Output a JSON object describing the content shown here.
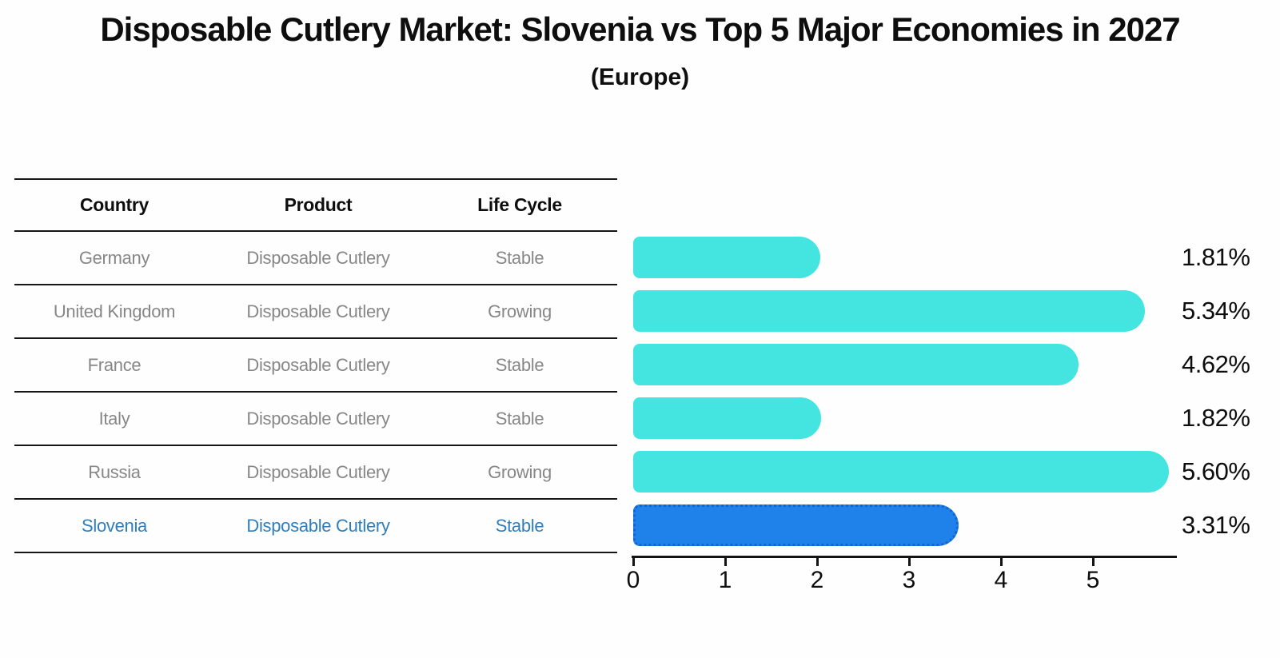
{
  "title": "Disposable Cutlery Market: Slovenia vs Top 5 Major Economies in 2027",
  "subtitle": "(Europe)",
  "table": {
    "columns": [
      "Country",
      "Product",
      "Life Cycle"
    ],
    "rows": [
      {
        "country": "Germany",
        "product": "Disposable Cutlery",
        "life_cycle": "Stable",
        "highlight": false
      },
      {
        "country": "United Kingdom",
        "product": "Disposable Cutlery",
        "life_cycle": "Growing",
        "highlight": false
      },
      {
        "country": "France",
        "product": "Disposable Cutlery",
        "life_cycle": "Stable",
        "highlight": false
      },
      {
        "country": "Italy",
        "product": "Disposable Cutlery",
        "life_cycle": "Stable",
        "highlight": false
      },
      {
        "country": "Russia",
        "product": "Disposable Cutlery",
        "life_cycle": "Growing",
        "highlight": false
      },
      {
        "country": "Slovenia",
        "product": "Disposable Cutlery",
        "life_cycle": "Stable",
        "highlight": true
      }
    ]
  },
  "chart_data": {
    "type": "bar",
    "orientation": "horizontal",
    "title": "Disposable Cutlery Market: Slovenia vs Top 5 Major Economies in 2027 (Europe)",
    "categories": [
      "Germany",
      "United Kingdom",
      "France",
      "Italy",
      "Russia",
      "Slovenia"
    ],
    "values": [
      1.81,
      5.34,
      4.62,
      1.82,
      5.6,
      3.31
    ],
    "value_labels": [
      "1.81%",
      "5.34%",
      "4.62%",
      "1.82%",
      "5.60%",
      "3.31%"
    ],
    "x_ticks": [
      "0",
      "1",
      "2",
      "3",
      "4",
      "5"
    ],
    "xlim": [
      0,
      5.93
    ],
    "grid": false,
    "legend": "none",
    "value_label_position": "right",
    "bar_color": "#44e5e0",
    "highlight_index": 5,
    "highlight_bar_color": "#1e82ea",
    "highlight_border_color": "#1563d2",
    "highlight_text_color": "#2e7ebf"
  },
  "colors": {
    "background": "#fefefe",
    "text": "#0e0e0e",
    "table_body_text": "#878787",
    "table_border": "#161616",
    "axis": "#131313"
  }
}
